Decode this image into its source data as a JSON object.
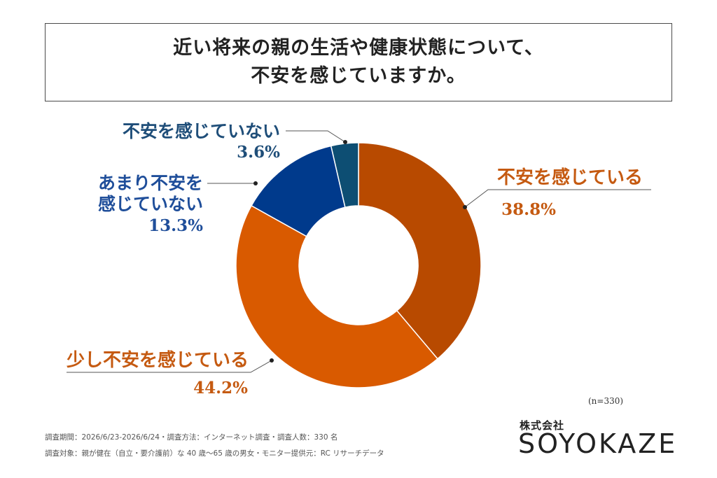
{
  "title": {
    "line1": "近い将来の親の生活や健康状態について、",
    "line2": "不安を感じていますか。"
  },
  "chart_data": {
    "type": "pie",
    "donut": true,
    "categories": [
      "不安を感じている",
      "少し不安を感じている",
      "あまり不安を感じていない",
      "不安を感じていない"
    ],
    "values": [
      38.8,
      44.2,
      13.3,
      3.6
    ],
    "value_labels": [
      "38.8%",
      "44.2%",
      "13.3%",
      "3.6%"
    ],
    "colors": [
      "#b84a00",
      "#d95a00",
      "#003a8c",
      "#0d4e73"
    ],
    "label_colors": [
      "#c55a11",
      "#c55a11",
      "#1f4e9a",
      "#1f4e79"
    ]
  },
  "sample_size": "(n=330)",
  "footnotes": [
    "調査期間：2026/6/23-2026/6/24・調査方法：インターネット調査・調査人数：330 名",
    "調査対象：親が健在（自立・要介護前）な 40 歳〜65 歳の男女・モニター提供元：RC リサーチデータ"
  ],
  "logo": {
    "company": "株式会社",
    "name": "SOYOKAZE"
  }
}
